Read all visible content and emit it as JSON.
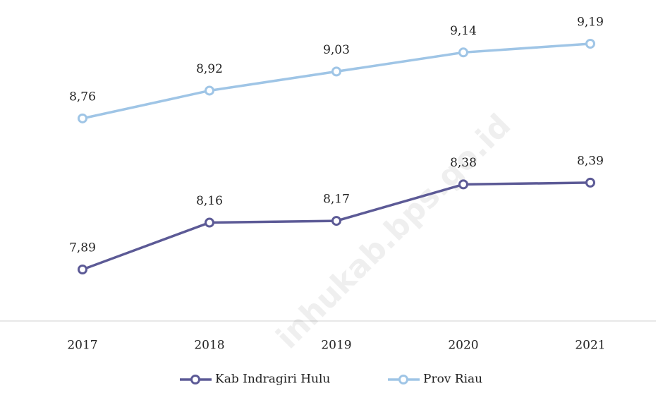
{
  "chart_data": {
    "type": "line",
    "categories": [
      "2017",
      "2018",
      "2019",
      "2020",
      "2021"
    ],
    "series": [
      {
        "name": "Kab Indragiri Hulu",
        "color": "#5c5a96",
        "values": [
          7.89,
          8.16,
          8.17,
          8.38,
          8.39
        ],
        "value_labels": [
          "7,89",
          "8,16",
          "8,17",
          "8,38",
          "8,39"
        ]
      },
      {
        "name": "Prov Riau",
        "color": "#9fc5e6",
        "values": [
          8.76,
          8.92,
          9.03,
          9.14,
          9.19
        ],
        "value_labels": [
          "8,76",
          "8,92",
          "9,03",
          "9,14",
          "9,19"
        ]
      }
    ],
    "legend": "bottom",
    "watermark": "inhukab.bps.go.id"
  }
}
